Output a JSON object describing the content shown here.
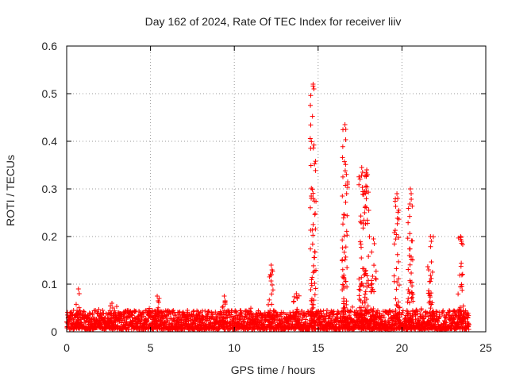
{
  "chart_data": {
    "type": "scatter",
    "title": "Day 162 of 2024, Rate Of TEC Index for receiver liiv",
    "xlabel": "GPS time / hours",
    "ylabel": "ROTI / TECUs",
    "xlim": [
      0,
      25
    ],
    "ylim": [
      0,
      0.6
    ],
    "x_ticks": [
      "0",
      "5",
      "10",
      "15",
      "20",
      "25"
    ],
    "y_ticks": [
      "0",
      "0.1",
      "0.2",
      "0.3",
      "0.4",
      "0.5",
      "0.6"
    ],
    "grid": true,
    "marker": "+",
    "marker_color": "#ff0000",
    "series": [
      {
        "name": "ROTI",
        "baseline": {
          "x_start": 0,
          "x_end": 24,
          "typical_low": 0.005,
          "typical_high": 0.045
        },
        "spikes": [
          {
            "x": 0.7,
            "peak": 0.09
          },
          {
            "x": 2.7,
            "peak": 0.06
          },
          {
            "x": 5.4,
            "peak": 0.075
          },
          {
            "x": 9.4,
            "peak": 0.075
          },
          {
            "x": 12.2,
            "peak": 0.14
          },
          {
            "x": 13.7,
            "peak": 0.08
          },
          {
            "x": 14.7,
            "peak": 0.52
          },
          {
            "x": 16.6,
            "peak": 0.435
          },
          {
            "x": 17.6,
            "peak": 0.345
          },
          {
            "x": 17.9,
            "peak": 0.34
          },
          {
            "x": 18.3,
            "peak": 0.195
          },
          {
            "x": 19.7,
            "peak": 0.29
          },
          {
            "x": 20.5,
            "peak": 0.3
          },
          {
            "x": 21.7,
            "peak": 0.2
          },
          {
            "x": 23.5,
            "peak": 0.2
          }
        ]
      }
    ]
  }
}
